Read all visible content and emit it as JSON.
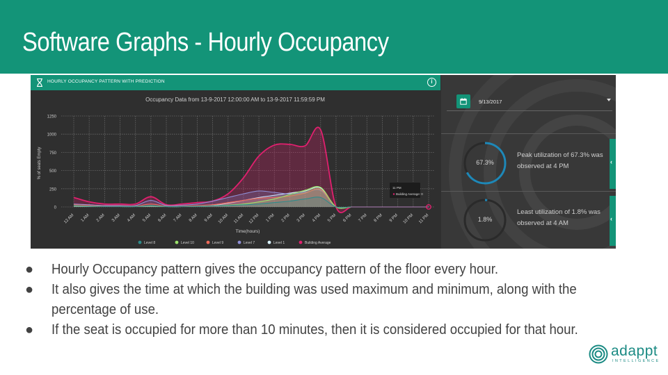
{
  "slide": {
    "title": "Software Graphs - Hourly Occupancy"
  },
  "panel": {
    "title": "HOURLY OCCUPANCY PATTERN WITH PREDICTION",
    "icon": "hourglass-icon",
    "info_icon": "info-icon",
    "accent_color": "#139478"
  },
  "chart_data": {
    "type": "area",
    "title": "Occupancy Data from 13-9-2017 12:00:00 AM to 13-9-2017 11:59:59 PM",
    "xlabel": "Time(hours)",
    "ylabel": "% of seats Empty",
    "ylim": [
      0,
      1250
    ],
    "yticks": [
      0,
      250,
      500,
      750,
      1000,
      1250
    ],
    "grid": true,
    "categories": [
      "12 AM",
      "1 AM",
      "2 AM",
      "3 AM",
      "4 AM",
      "5 AM",
      "6 AM",
      "7 AM",
      "8 AM",
      "9 AM",
      "10 AM",
      "11 AM",
      "12 PM",
      "1 PM",
      "2 PM",
      "3 PM",
      "4 PM",
      "5 PM",
      "6 PM",
      "7 PM",
      "8 PM",
      "9 PM",
      "10 PM",
      "11 PM"
    ],
    "legend_position": "bottom",
    "series": [
      {
        "name": "Level 8",
        "color": "#2e8b8b",
        "values": [
          20,
          10,
          5,
          5,
          5,
          20,
          5,
          5,
          10,
          15,
          20,
          30,
          40,
          60,
          80,
          110,
          130,
          0,
          0,
          0,
          0,
          0,
          0,
          0
        ]
      },
      {
        "name": "Level 10",
        "color": "#9be36b",
        "values": [
          15,
          10,
          5,
          5,
          5,
          15,
          5,
          5,
          10,
          15,
          25,
          40,
          70,
          110,
          170,
          230,
          270,
          0,
          0,
          0,
          0,
          0,
          0,
          0
        ]
      },
      {
        "name": "Level 9",
        "color": "#ef6a5a",
        "values": [
          30,
          20,
          10,
          10,
          10,
          40,
          10,
          10,
          20,
          30,
          60,
          90,
          120,
          130,
          150,
          190,
          240,
          0,
          0,
          0,
          0,
          0,
          0,
          0
        ]
      },
      {
        "name": "Level 7",
        "color": "#8f8fd6",
        "values": [
          40,
          30,
          20,
          20,
          20,
          90,
          20,
          25,
          40,
          80,
          130,
          180,
          220,
          200,
          180,
          200,
          230,
          0,
          0,
          0,
          0,
          0,
          0,
          0
        ]
      },
      {
        "name": "Level 1",
        "color": "#d9f2ff",
        "values": [
          10,
          5,
          5,
          5,
          5,
          10,
          5,
          5,
          10,
          20,
          50,
          90,
          130,
          160,
          190,
          220,
          260,
          0,
          0,
          0,
          0,
          0,
          0,
          0
        ]
      },
      {
        "name": "Building Average",
        "color": "#e0206e",
        "values": [
          130,
          70,
          40,
          40,
          40,
          140,
          30,
          40,
          60,
          80,
          180,
          400,
          700,
          850,
          860,
          840,
          1060,
          0,
          0,
          0,
          0,
          0,
          0,
          0
        ]
      }
    ],
    "tooltip": {
      "time": "11 PM",
      "series": "Building Average",
      "value": "0",
      "label": "Building Average: 0"
    }
  },
  "side": {
    "calendar_icon": "calendar-icon",
    "date": "9/13/2017",
    "peak": {
      "percent_label": "67.3%",
      "percent": 67.3,
      "text": "Peak utilization of 67.3% was observed at 4 PM"
    },
    "least": {
      "percent_label": "1.8%",
      "percent": 1.8,
      "text": "Least utilization of 1.8% was observed at 4 AM"
    },
    "ring_color": "#1e88b8"
  },
  "bullets": [
    "Hourly Occupancy pattern gives the occupancy pattern of the floor every hour.",
    "It also gives the time at which the building was used maximum and minimum, along with the percentage of use.",
    "If the seat is occupied for more than 10 minutes, then it is considered occupied for that hour."
  ],
  "bullet_glyph": "●",
  "logo": {
    "word": "adappt",
    "sub": "INTELLIGENCE",
    "color": "#1a8a83"
  }
}
